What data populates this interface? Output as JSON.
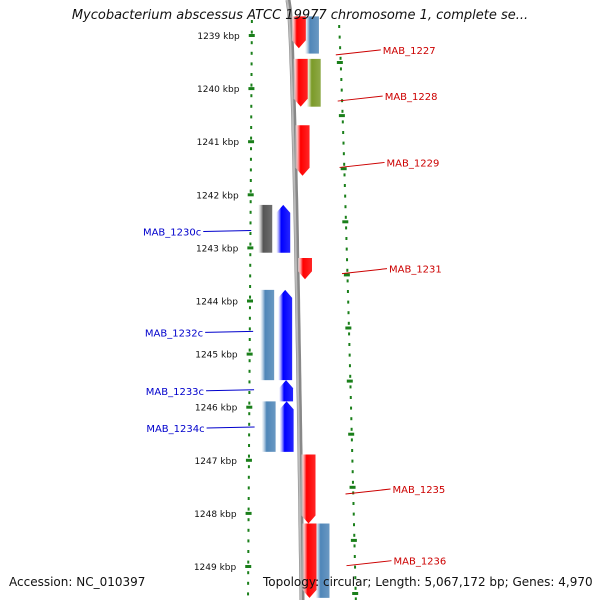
{
  "title": "Mycobacterium abscessus ATCC 19977 chromosome 1, complete se...",
  "accession": "Accession: NC_010397",
  "summary": "Topology: circular; Length: 5,067,172 bp; Genes: 4,970",
  "colors": {
    "forward_gene": "#ff0000",
    "reverse_gene": "#0000ff",
    "forward_label": "#cc0000",
    "reverse_label": "#0000cc",
    "cds_blue": "#4f86b8",
    "cds_olive": "#7b9a28",
    "cds_gray": "#555555",
    "tick": "#1a7f1a",
    "backbone": "#888888"
  },
  "ruler": {
    "unit": "kbp",
    "ticks": [
      {
        "pos": 1239,
        "label": "1239 kbp"
      },
      {
        "pos": 1240,
        "label": "1240 kbp"
      },
      {
        "pos": 1241,
        "label": "1241 kbp"
      },
      {
        "pos": 1242,
        "label": "1242 kbp"
      },
      {
        "pos": 1243,
        "label": "1243 kbp"
      },
      {
        "pos": 1244,
        "label": "1244 kbp"
      },
      {
        "pos": 1245,
        "label": "1245 kbp"
      },
      {
        "pos": 1246,
        "label": "1246 kbp"
      },
      {
        "pos": 1247,
        "label": "1247 kbp"
      },
      {
        "pos": 1248,
        "label": "1248 kbp"
      },
      {
        "pos": 1249,
        "label": "1249 kbp"
      }
    ]
  },
  "genes": [
    {
      "name": "MAB_1227",
      "strand": "+",
      "start": 1238.65,
      "end": 1239.25,
      "label_at": 1239.28
    },
    {
      "name": "MAB_1228",
      "strand": "+",
      "start": 1239.45,
      "end": 1240.35,
      "label_at": 1240.15
    },
    {
      "name": "MAB_1229",
      "strand": "+",
      "start": 1240.7,
      "end": 1241.65,
      "label_at": 1241.4
    },
    {
      "name": "MAB_1230c",
      "strand": "-",
      "start": 1242.2,
      "end": 1243.1,
      "label_at": 1242.7
    },
    {
      "name": "MAB_1231",
      "strand": "+",
      "start": 1243.2,
      "end": 1243.6,
      "label_at": 1243.4
    },
    {
      "name": "MAB_1232c",
      "strand": "-",
      "start": 1243.8,
      "end": 1245.5,
      "label_at": 1244.6
    },
    {
      "name": "MAB_1233c",
      "strand": "-",
      "start": 1245.5,
      "end": 1245.9,
      "label_at": 1245.7
    },
    {
      "name": "MAB_1234c",
      "strand": "-",
      "start": 1245.9,
      "end": 1246.85,
      "label_at": 1246.4
    },
    {
      "name": "MAB_1235",
      "strand": "+",
      "start": 1246.9,
      "end": 1248.2,
      "label_at": 1247.55
    },
    {
      "name": "MAB_1236",
      "strand": "+",
      "start": 1248.2,
      "end": 1249.6,
      "label_at": 1248.9
    }
  ],
  "cds_features": [
    {
      "strand": "+",
      "color": "cds_blue",
      "start": 1238.65,
      "end": 1239.35
    },
    {
      "strand": "+",
      "color": "cds_olive",
      "start": 1239.45,
      "end": 1240.35
    },
    {
      "strand": "-",
      "color": "cds_gray",
      "start": 1242.2,
      "end": 1243.1
    },
    {
      "strand": "-",
      "color": "cds_blue",
      "start": 1243.8,
      "end": 1245.5
    },
    {
      "strand": "-",
      "color": "cds_blue",
      "start": 1245.9,
      "end": 1246.85
    },
    {
      "strand": "+",
      "color": "cds_blue",
      "start": 1248.2,
      "end": 1249.6
    }
  ]
}
